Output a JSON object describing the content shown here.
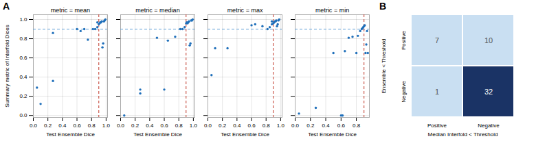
{
  "chart_data": [
    {
      "type": "scatter",
      "title": "metric = mean",
      "annotations": [
        "A"
      ],
      "xlabel": "Test Ensemble Dice",
      "ylabel": "Summary metric of Interfold Dices",
      "x": [
        0.05,
        0.1,
        0.27,
        0.27,
        0.6,
        0.65,
        0.7,
        0.75,
        0.82,
        0.85,
        0.88,
        0.88,
        0.9,
        0.91,
        0.92,
        0.93,
        0.94,
        0.95,
        0.96,
        0.97,
        0.98,
        0.99
      ],
      "values": [
        0.29,
        0.12,
        0.36,
        0.86,
        0.9,
        0.88,
        0.9,
        0.79,
        0.9,
        0.9,
        0.92,
        0.97,
        0.95,
        0.96,
        0.97,
        0.97,
        0.98,
        0.71,
        0.75,
        0.98,
        0.99,
        1.0
      ],
      "color": "#1f6fba",
      "hline": {
        "value": 0.9,
        "color": "#5b9bd5",
        "line_style": "dashed"
      },
      "vline": {
        "value": 0.9,
        "color": "#c0392b",
        "line_style": "dashed"
      },
      "xlim": [
        0.0,
        1.02
      ],
      "xticks": [
        {
          "value": 0.0,
          "label": "0.0"
        },
        0.2,
        0.4,
        0.6,
        0.8,
        {
          "value": 1.0,
          "label": "1.0"
        }
      ],
      "ylim": [
        -0.02,
        1.05
      ],
      "yticks": [
        {
          "value": 0.0,
          "label": "0.0"
        },
        0.2,
        0.4,
        0.6,
        0.8,
        {
          "value": 1.0,
          "label": "1.0"
        }
      ],
      "grid": true
    },
    {
      "type": "scatter",
      "title": "metric = median",
      "xlabel": "Test Ensemble Dice",
      "x": [
        0.05,
        0.27,
        0.27,
        0.5,
        0.6,
        0.65,
        0.75,
        0.82,
        0.85,
        0.88,
        0.9,
        0.91,
        0.92,
        0.93,
        0.94,
        0.95,
        0.96,
        0.97,
        0.98,
        0.99
      ],
      "values": [
        0.0,
        0.23,
        0.27,
        0.81,
        0.27,
        0.78,
        0.82,
        0.9,
        0.9,
        0.92,
        0.96,
        0.97,
        0.96,
        0.97,
        0.98,
        0.73,
        0.75,
        0.99,
        0.99,
        1.0
      ],
      "color": "#1f6fba",
      "hline": {
        "value": 0.9,
        "color": "#5b9bd5",
        "line_style": "dashed"
      },
      "vline": {
        "value": 0.9,
        "color": "#c0392b",
        "line_style": "dashed"
      },
      "xlim": [
        0.0,
        1.02
      ],
      "xticks": [
        {
          "value": 0.0,
          "label": "0.0"
        },
        0.2,
        0.4,
        0.6,
        0.8,
        {
          "value": 1.0,
          "label": "1.0"
        }
      ],
      "ylim": [
        -0.02,
        1.05
      ],
      "yticks": [
        0.0,
        0.2,
        0.4,
        0.6,
        0.8,
        1.0
      ],
      "tick_labels": "x",
      "grid": true
    },
    {
      "type": "scatter",
      "title": "metric = max",
      "xlabel": "Test Ensemble Dice",
      "x": [
        0.05,
        0.1,
        0.27,
        0.6,
        0.65,
        0.75,
        0.82,
        0.85,
        0.88,
        0.88,
        0.9,
        0.91,
        0.92,
        0.93,
        0.94,
        0.95,
        0.96,
        0.97,
        0.98
      ],
      "values": [
        0.42,
        0.7,
        0.7,
        0.94,
        0.95,
        0.93,
        0.9,
        0.92,
        0.95,
        0.98,
        0.96,
        0.97,
        0.98,
        0.98,
        0.99,
        0.93,
        0.95,
        0.99,
        1.0
      ],
      "color": "#1f6fba",
      "hline": {
        "value": 0.9,
        "color": "#5b9bd5",
        "line_style": "dashed"
      },
      "vline": {
        "value": 0.9,
        "color": "#c0392b",
        "line_style": "dashed"
      },
      "xlim": [
        0.0,
        1.02
      ],
      "xticks": [
        {
          "value": 0.0,
          "label": "0.0"
        },
        0.2,
        0.4,
        0.6,
        0.8,
        {
          "value": 1.0,
          "label": "1.0"
        }
      ],
      "ylim": [
        -0.02,
        1.05
      ],
      "yticks": [
        0.0,
        0.2,
        0.4,
        0.6,
        0.8,
        1.0
      ],
      "tick_labels": "x",
      "grid": true
    },
    {
      "type": "scatter",
      "title": "metric = min",
      "xlabel": "Test Ensemble Dice",
      "x": [
        0.05,
        0.27,
        0.5,
        0.6,
        0.62,
        0.65,
        0.7,
        0.75,
        0.8,
        0.82,
        0.85,
        0.87,
        0.88,
        0.89,
        0.9,
        0.91,
        0.92,
        0.93,
        0.94,
        0.95
      ],
      "values": [
        0.02,
        0.08,
        0.65,
        0.0,
        0.0,
        0.67,
        0.81,
        0.82,
        0.65,
        0.83,
        0.88,
        0.9,
        0.91,
        0.92,
        0.93,
        0.94,
        0.65,
        0.74,
        0.88,
        0.65
      ],
      "color": "#1f6fba",
      "hline": {
        "value": 0.9,
        "color": "#5b9bd5",
        "line_style": "dashed"
      },
      "vline": {
        "value": 0.9,
        "color": "#c0392b",
        "line_style": "dashed"
      },
      "xlim": [
        0.0,
        0.97
      ],
      "xticks": [
        {
          "value": 0.0,
          "label": "0.0"
        },
        0.2,
        0.4,
        0.6,
        0.8
      ],
      "ylim": [
        -0.02,
        1.05
      ],
      "yticks": [
        0.0,
        0.2,
        0.4,
        0.6,
        0.8,
        1.0
      ],
      "tick_labels": "x",
      "grid": true
    },
    {
      "type": "heatmap",
      "annotations": [
        "B"
      ],
      "xlabel": "Median Interfold < Threshold",
      "ylabel": "Ensemble < Threshold",
      "x": [
        "Positive",
        "Negative"
      ],
      "y": [
        "Positive",
        "Negative"
      ],
      "values": [
        [
          7,
          10
        ],
        [
          1,
          32
        ]
      ],
      "colors": [
        [
          "#c9dff2",
          "#c9dff2"
        ],
        [
          "#c9dff2",
          "#1a3365"
        ]
      ],
      "data_labels": true
    }
  ]
}
